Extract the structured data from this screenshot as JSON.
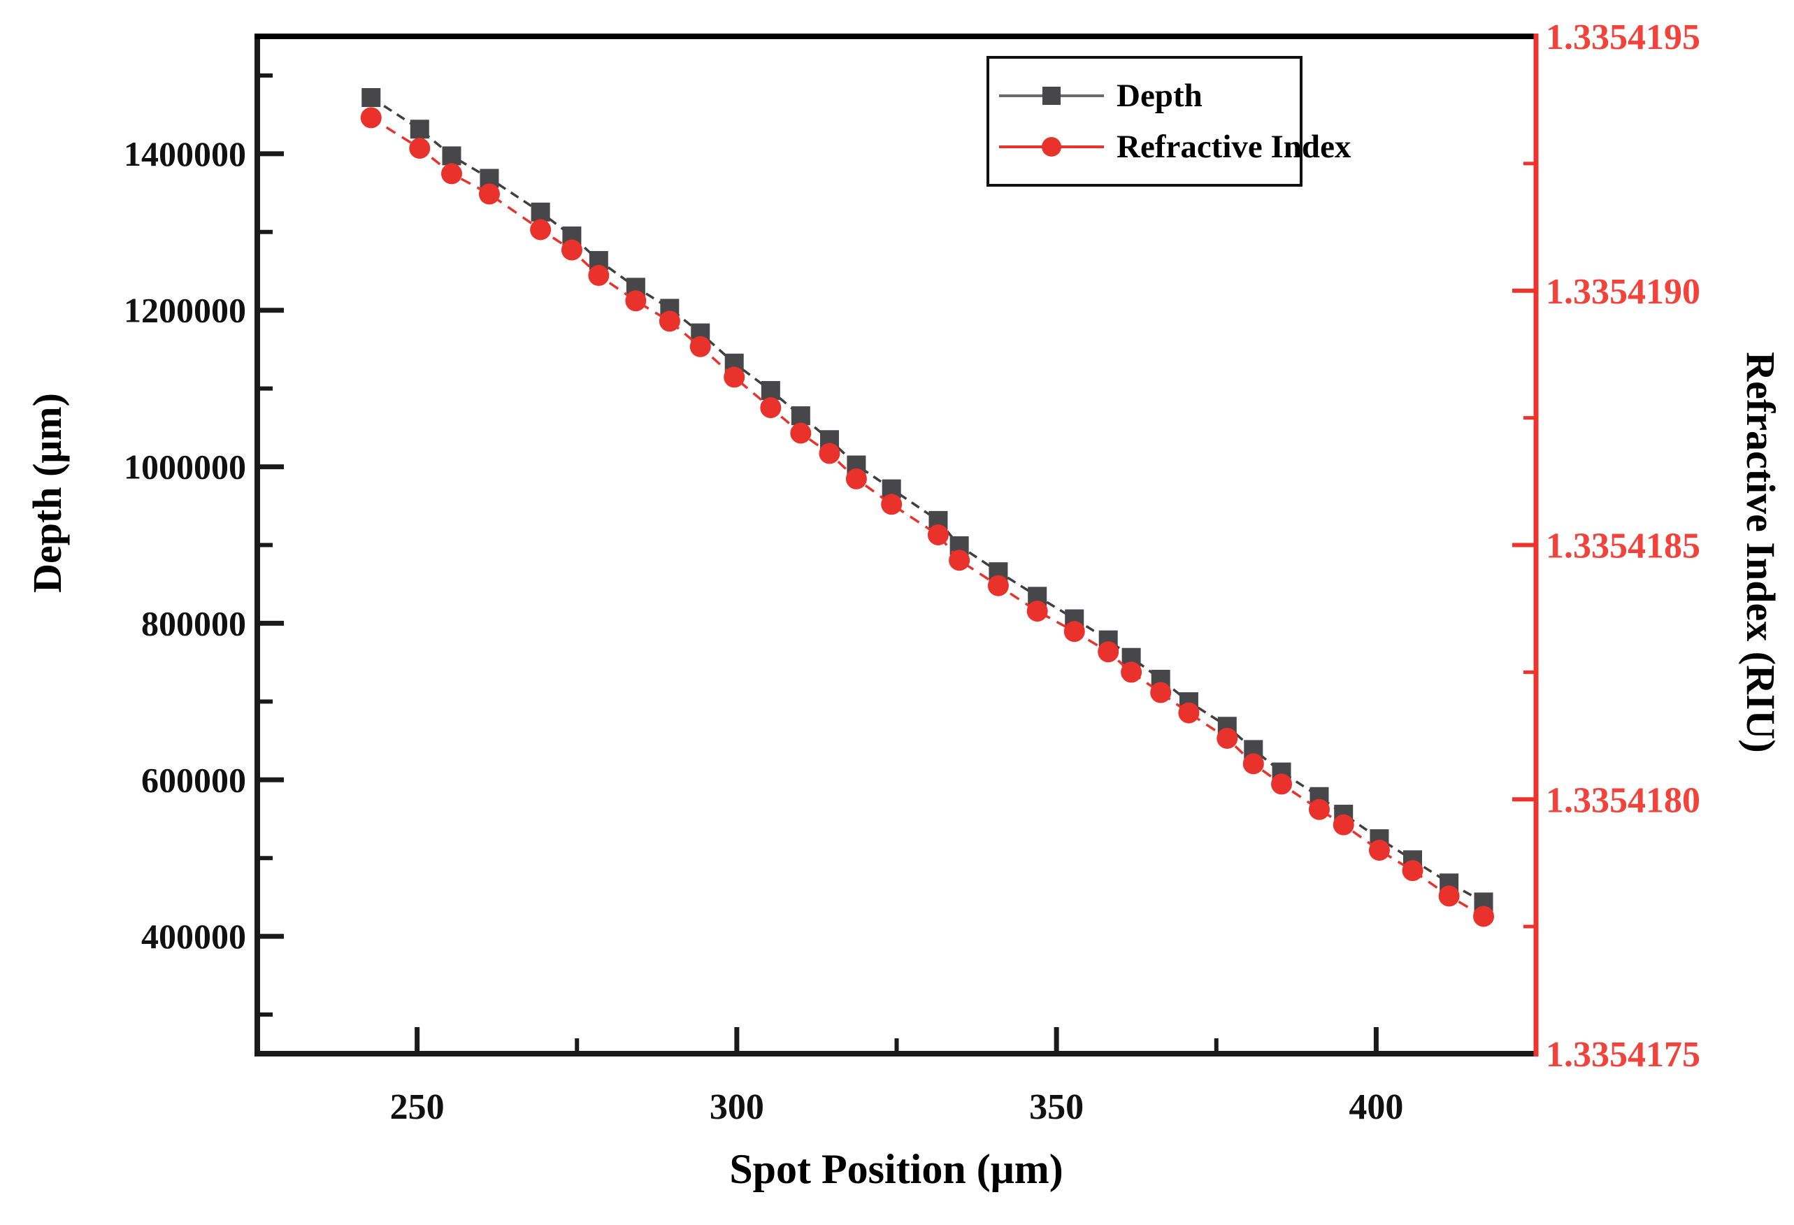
{
  "chart_data": {
    "type": "line",
    "title": "",
    "xlabel": "Spot Position (μm)",
    "ylabel_left": "Depth (μm)",
    "ylabel_right": "Refractive Index (RIU)",
    "grid": false,
    "legend_position": "top-right",
    "x_axis": {
      "min": 225,
      "max": 425,
      "major_ticks": [
        250,
        300,
        350,
        400
      ],
      "minor_ticks": [
        275,
        325,
        375
      ],
      "color": "#1a1a1a"
    },
    "y_left_axis": {
      "min": 250000,
      "max": 1550000,
      "major_ticks": [
        1400000,
        1200000,
        1000000,
        800000,
        600000,
        400000
      ],
      "minor_ticks": [
        1500000,
        1300000,
        1100000,
        900000,
        700000,
        500000,
        300000
      ],
      "color": "#1a1a1a"
    },
    "y_right_axis": {
      "min": 1.3354175,
      "max": 1.3354195,
      "major_ticks": [
        1.3354195,
        1.335419,
        1.3354185,
        1.335418,
        1.3354175
      ],
      "major_tick_labels": [
        "1.3354195",
        "1.3354190",
        "1.3354185",
        "1.3354180",
        "1.3354175"
      ],
      "minor_ticks": [
        1.33541925,
        1.33541875,
        1.33541825,
        1.33541775
      ],
      "axis_color": "#ed332d",
      "label_color": "#f2423c"
    },
    "x": [
      242.8,
      250.4,
      255.4,
      261.3,
      269.3,
      274.2,
      278.4,
      284.2,
      289.5,
      294.3,
      299.6,
      305.3,
      310.0,
      314.5,
      318.7,
      324.2,
      331.5,
      334.8,
      340.9,
      347.0,
      352.8,
      358.1,
      361.7,
      366.3,
      370.7,
      376.7,
      380.8,
      385.2,
      391.1,
      394.9,
      400.5,
      405.7,
      411.4,
      416.8
    ],
    "series": [
      {
        "name": "Depth",
        "axis": "left",
        "marker": "square",
        "marker_color": "#474749",
        "line_color": "#3f3f3f",
        "values": [
          1471800,
          1431400,
          1397300,
          1368600,
          1325500,
          1295000,
          1263600,
          1229400,
          1202500,
          1171100,
          1132500,
          1097500,
          1065200,
          1034700,
          1002300,
          971800,
          931400,
          899100,
          865900,
          834500,
          805700,
          778800,
          756400,
          728500,
          699800,
          668400,
          638700,
          610000,
          578600,
          556100,
          524700,
          497800,
          468200,
          443900
        ]
      },
      {
        "name": "Refractive Index",
        "axis": "right",
        "marker": "circle",
        "marker_color": "#e8322b",
        "line_color": "#e8322b",
        "values": [
          1.33541934,
          1.33541928,
          1.33541923,
          1.33541919,
          1.33541912,
          1.33541908,
          1.33541903,
          1.33541898,
          1.33541894,
          1.33541889,
          1.33541883,
          1.33541877,
          1.33541872,
          1.33541868,
          1.33541863,
          1.33541858,
          1.33541852,
          1.33541847,
          1.33541842,
          1.33541837,
          1.33541833,
          1.33541829,
          1.33541825,
          1.33541821,
          1.33541817,
          1.33541812,
          1.33541807,
          1.33541803,
          1.33541798,
          1.33541795,
          1.3354179,
          1.33541786,
          1.33541781,
          1.33541777
        ]
      }
    ]
  }
}
